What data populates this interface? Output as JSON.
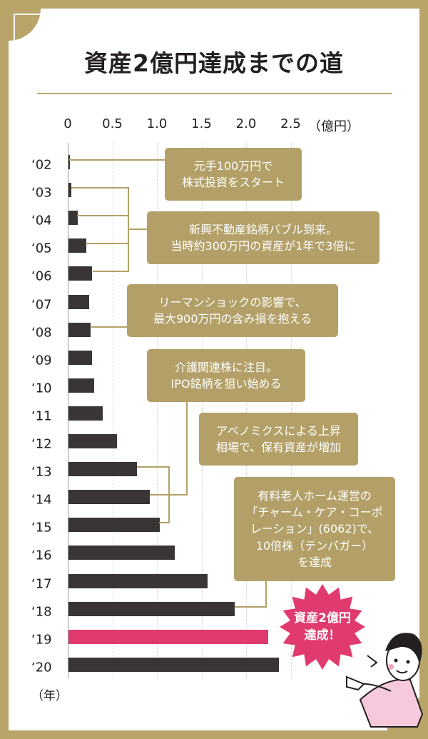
{
  "colors": {
    "frame": "#b9a46a",
    "note_box": "#b3a068",
    "bar": "#3a3535",
    "highlight": "#e03a6e",
    "text": "#231f20"
  },
  "title": "資産2億円達成までの道",
  "chart_data": {
    "type": "bar",
    "orientation": "horizontal",
    "title": "資産2億円達成までの道",
    "x_unit": "（億円）",
    "y_unit": "（年）",
    "xlim": [
      0,
      2.5
    ],
    "x_ticks": [
      "0",
      "0.5",
      "1.0",
      "1.5",
      "2.0",
      "2.5"
    ],
    "x_tick_values": [
      0,
      0.5,
      1.0,
      1.5,
      2.0,
      2.5
    ],
    "categories": [
      "‘02",
      "‘03",
      "‘04",
      "‘05",
      "‘06",
      "‘07",
      "‘08",
      "‘09",
      "‘10",
      "‘11",
      "‘12",
      "‘13",
      "‘14",
      "‘15",
      "‘16",
      "‘17",
      "‘18",
      "‘19",
      "‘20"
    ],
    "values": [
      0.01,
      0.03,
      0.1,
      0.2,
      0.26,
      0.23,
      0.25,
      0.26,
      0.29,
      0.38,
      0.54,
      0.77,
      0.91,
      1.02,
      1.19,
      1.56,
      1.86,
      2.24,
      2.36
    ],
    "highlight_index": 17,
    "grid": true,
    "annotations": [
      "元手100万円で\n株式投資をスタート",
      "新興不動産銘柄バブル到来。\n当時約300万円の資産が1年で3倍に",
      "リーマンショックの影響で、\n最大900万円の含み損を抱える",
      "介護関連株に注目。\nIPO銘柄を狙い始める",
      "アベノミクスによる上昇\n相場で、保有資産が増加",
      "有料老人ホーム運営の\n「チャーム・ケア・コーポ\nレーション」(6062)で、\n10倍株（テンバガー）\nを達成"
    ],
    "callout": "資産2億円\n達成！"
  }
}
